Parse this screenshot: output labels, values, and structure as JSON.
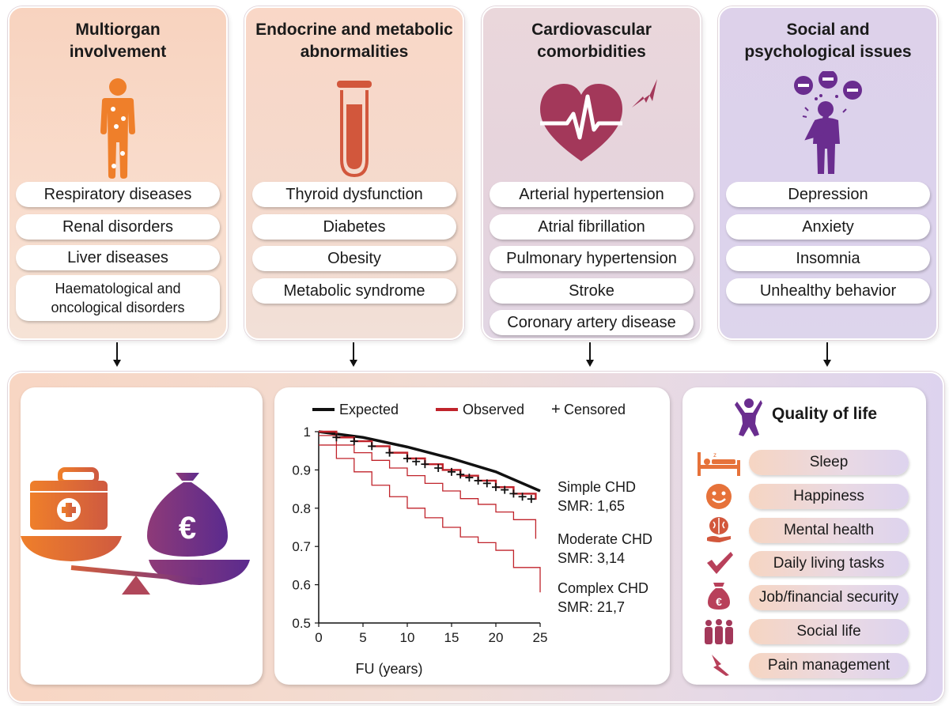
{
  "panels": [
    {
      "title": "Multiorgan\ninvolvement",
      "items": [
        "Respiratory diseases",
        "Renal disorders",
        "Liver diseases",
        "Haematological and\noncological disorders"
      ]
    },
    {
      "title": "Endocrine and metabolic\nabnormalities",
      "items": [
        "Thyroid dysfunction",
        "Diabetes",
        "Obesity",
        "Metabolic syndrome"
      ]
    },
    {
      "title": "Cardiovascular\ncomorbidities",
      "items": [
        "Arterial hypertension",
        "Atrial fibrillation",
        "Pulmonary hypertension",
        "Stroke",
        "Coronary artery disease"
      ]
    },
    {
      "title": "Social and\npsychological issues",
      "items": [
        "Depression",
        "Anxiety",
        "Insomnia",
        "Unhealthy behavior"
      ]
    }
  ],
  "cost": {
    "currency_symbol": "€"
  },
  "chart_data": {
    "type": "line",
    "title": "",
    "xlabel": "FU (years)",
    "ylabel": "",
    "xlim": [
      0,
      25
    ],
    "ylim": [
      0.5,
      1.0
    ],
    "xticks": [
      "0",
      "5",
      "10",
      "15",
      "20",
      "25"
    ],
    "yticks": [
      "0.5",
      "0.6",
      "0.7",
      "0.8",
      "0.9",
      "1"
    ],
    "legend": [
      {
        "label": "Expected",
        "color": "#111111"
      },
      {
        "label": "Observed",
        "color": "#c0232b"
      },
      {
        "label": "Censored",
        "symbol": "+"
      }
    ],
    "series": [
      {
        "name": "Expected",
        "color": "#111111",
        "step": false,
        "x": [
          0,
          5,
          10,
          15,
          20,
          25
        ],
        "y": [
          1.0,
          0.985,
          0.96,
          0.93,
          0.895,
          0.845
        ]
      },
      {
        "name": "Observed – Simple CHD",
        "color": "#c0232b",
        "step": true,
        "x": [
          0,
          2,
          4,
          6,
          8,
          10,
          12,
          14,
          16,
          18,
          20,
          22,
          24.5
        ],
        "y": [
          1.0,
          0.985,
          0.975,
          0.962,
          0.945,
          0.93,
          0.915,
          0.9,
          0.885,
          0.872,
          0.855,
          0.838,
          0.822
        ]
      },
      {
        "name": "Observed – Moderate CHD",
        "color": "#c0232b",
        "step": true,
        "x": [
          0,
          2,
          4,
          6,
          8,
          10,
          12,
          14,
          16,
          18,
          20,
          22,
          24.5
        ],
        "y": [
          0.99,
          0.965,
          0.945,
          0.925,
          0.905,
          0.885,
          0.865,
          0.845,
          0.825,
          0.81,
          0.79,
          0.77,
          0.72
        ]
      },
      {
        "name": "Observed – Complex CHD",
        "color": "#c0232b",
        "step": true,
        "x": [
          0,
          2,
          4,
          6,
          8,
          10,
          12,
          14,
          16,
          18,
          20,
          22,
          25
        ],
        "y": [
          0.965,
          0.93,
          0.895,
          0.86,
          0.83,
          0.8,
          0.775,
          0.75,
          0.725,
          0.71,
          0.69,
          0.645,
          0.58
        ]
      }
    ],
    "censored": {
      "x": [
        2,
        4,
        6,
        8,
        10,
        11,
        12,
        13.5,
        15,
        16,
        17,
        18,
        19,
        20,
        21,
        22,
        23,
        24
      ],
      "y": [
        0.985,
        0.975,
        0.962,
        0.945,
        0.93,
        0.922,
        0.915,
        0.905,
        0.895,
        0.888,
        0.88,
        0.872,
        0.865,
        0.855,
        0.848,
        0.838,
        0.83,
        0.824
      ]
    },
    "annotations": [
      {
        "text": "Simple CHD",
        "sub": "SMR: 1,65"
      },
      {
        "text": "Moderate CHD",
        "sub": "SMR: 3,14"
      },
      {
        "text": "Complex CHD",
        "sub": "SMR: 21,7"
      }
    ]
  },
  "qol": {
    "title": "Quality of life",
    "items": [
      "Sleep",
      "Happiness",
      "Mental health",
      "Daily living tasks",
      "Job/financial security",
      "Social life",
      "Pain management"
    ]
  }
}
